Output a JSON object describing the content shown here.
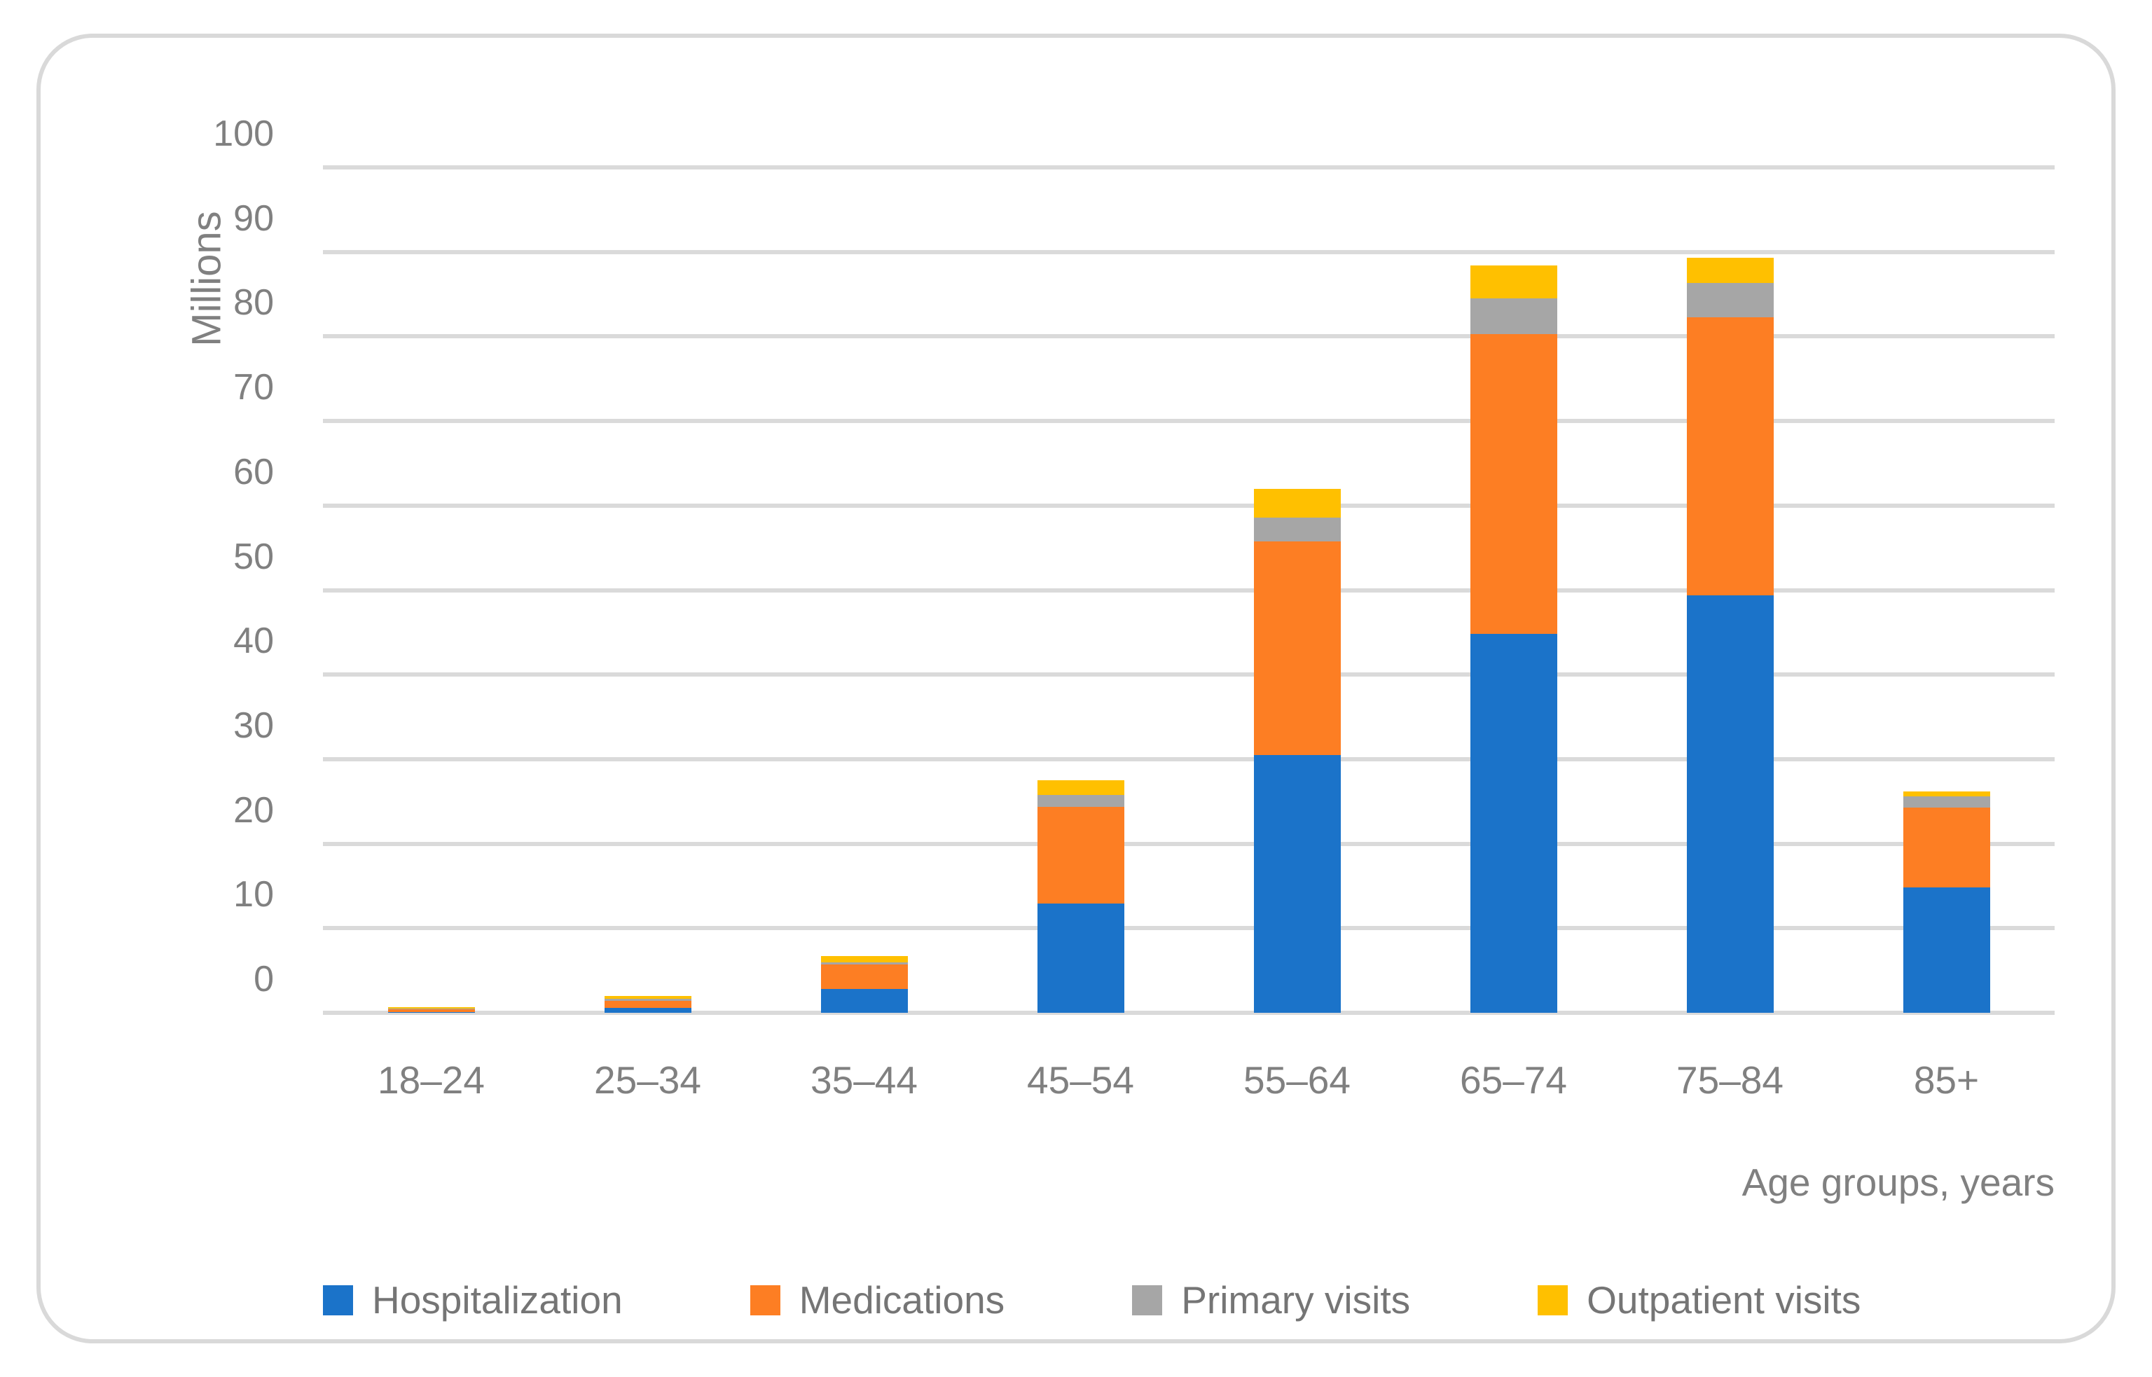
{
  "chart_data": {
    "type": "bar",
    "stacked": true,
    "categories": [
      "18–24",
      "25–34",
      "35–44",
      "45–54",
      "55–64",
      "65–74",
      "75–84",
      "85+"
    ],
    "series": [
      {
        "name": "Hospitalization",
        "color": "#1B73C9",
        "values": [
          0.05,
          0.6,
          2.8,
          12.9,
          30.5,
          44.8,
          49.4,
          14.8
        ]
      },
      {
        "name": "Medications",
        "color": "#FD7E23",
        "values": [
          0.4,
          0.85,
          2.9,
          11.5,
          25.3,
          35.5,
          32.9,
          9.5
        ]
      },
      {
        "name": "Primary visits",
        "color": "#A6A6A6",
        "values": [
          0.05,
          0.25,
          0.3,
          1.4,
          2.8,
          4.2,
          4.0,
          1.3
        ]
      },
      {
        "name": "Outpatient visits",
        "color": "#FFC000",
        "values": [
          0.15,
          0.25,
          0.7,
          1.7,
          3.4,
          3.9,
          3.0,
          0.6
        ]
      }
    ],
    "totals_by_category": [
      0.65,
      1.95,
      6.7,
      27.5,
      62.0,
      88.4,
      89.3,
      26.2
    ],
    "xlabel": "Age groups, years",
    "ylabel": "Millions",
    "ylim": [
      0,
      100
    ],
    "yticks": [
      0,
      10,
      20,
      30,
      40,
      50,
      60,
      70,
      80,
      90,
      100
    ],
    "grid": true,
    "legend_position": "bottom"
  },
  "colors": {
    "gridline": "#DADADA",
    "axis_text": "#808080",
    "legend_text": "#757575",
    "card_border": "#D9D9D9",
    "background": "#FFFFFF"
  }
}
